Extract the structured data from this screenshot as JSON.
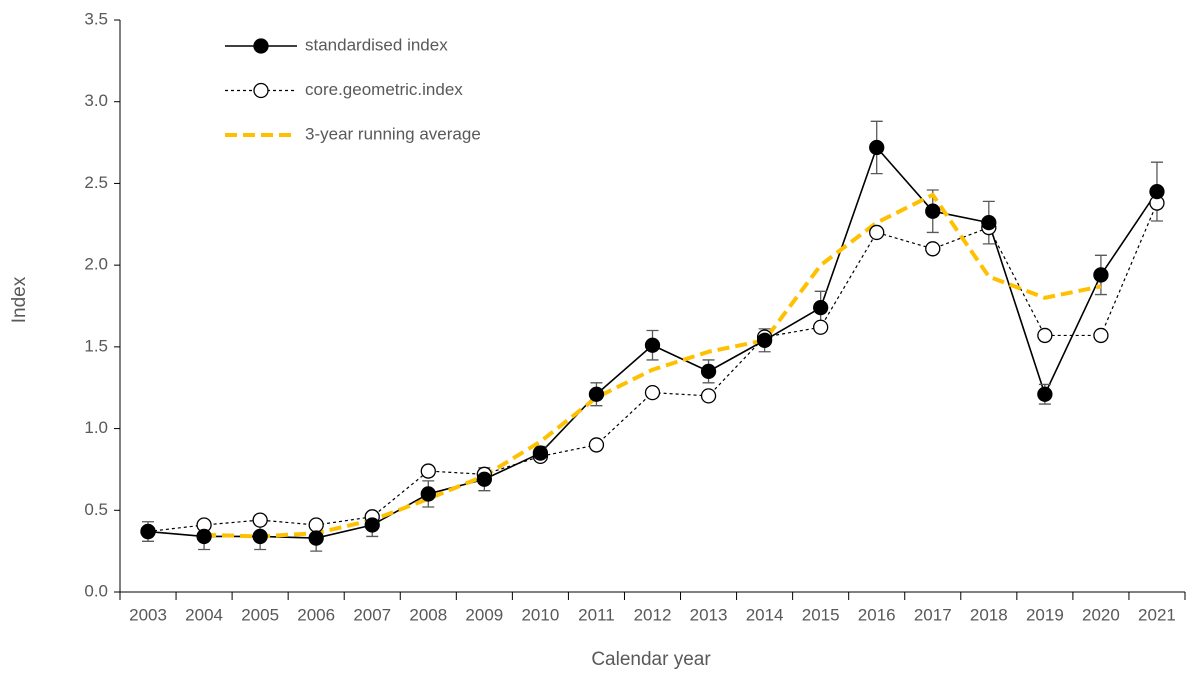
{
  "chart_data": {
    "type": "line",
    "x_label": "Calendar year",
    "y_label": "Index",
    "categories": [
      "2003",
      "2004",
      "2005",
      "2006",
      "2007",
      "2008",
      "2009",
      "2010",
      "2011",
      "2012",
      "2013",
      "2014",
      "2015",
      "2016",
      "2017",
      "2018",
      "2019",
      "2020",
      "2021"
    ],
    "series": [
      {
        "name": "standardised index",
        "color": "#000000",
        "line": "solid",
        "marker": "filled",
        "values": [
          0.37,
          0.34,
          0.34,
          0.33,
          0.41,
          0.6,
          0.69,
          0.85,
          1.21,
          1.51,
          1.35,
          1.54,
          1.74,
          2.72,
          2.33,
          2.26,
          1.21,
          1.94,
          2.45
        ],
        "errors": [
          0.06,
          0.08,
          0.08,
          0.08,
          0.07,
          0.08,
          0.07,
          0.04,
          0.07,
          0.09,
          0.07,
          0.07,
          0.1,
          0.16,
          0.13,
          0.13,
          0.06,
          0.12,
          0.18
        ]
      },
      {
        "name": "core.geometric.index",
        "color": "#000000",
        "line": "dotted",
        "marker": "open",
        "values": [
          0.37,
          0.41,
          0.44,
          0.41,
          0.46,
          0.74,
          0.72,
          0.83,
          0.9,
          1.22,
          1.2,
          1.56,
          1.62,
          2.2,
          2.1,
          2.23,
          1.57,
          1.57,
          2.38
        ]
      },
      {
        "name": "3-year running average",
        "color": "#ffc000",
        "line": "dashed",
        "marker": "none",
        "values": [
          null,
          0.35,
          0.34,
          0.36,
          0.44,
          0.57,
          0.71,
          0.92,
          1.19,
          1.36,
          1.47,
          1.54,
          2.0,
          2.26,
          2.43,
          1.93,
          1.8,
          1.87,
          null
        ]
      }
    ],
    "ylim": [
      0,
      3.5
    ],
    "yticks": [
      {
        "value": 0,
        "label": "0.0"
      },
      0.5,
      {
        "value": 1,
        "label": "1.0"
      },
      1.5,
      {
        "value": 2,
        "label": "2.0"
      },
      2.5,
      {
        "value": 3,
        "label": "3.0"
      },
      3.5
    ],
    "legend": "top-left"
  }
}
